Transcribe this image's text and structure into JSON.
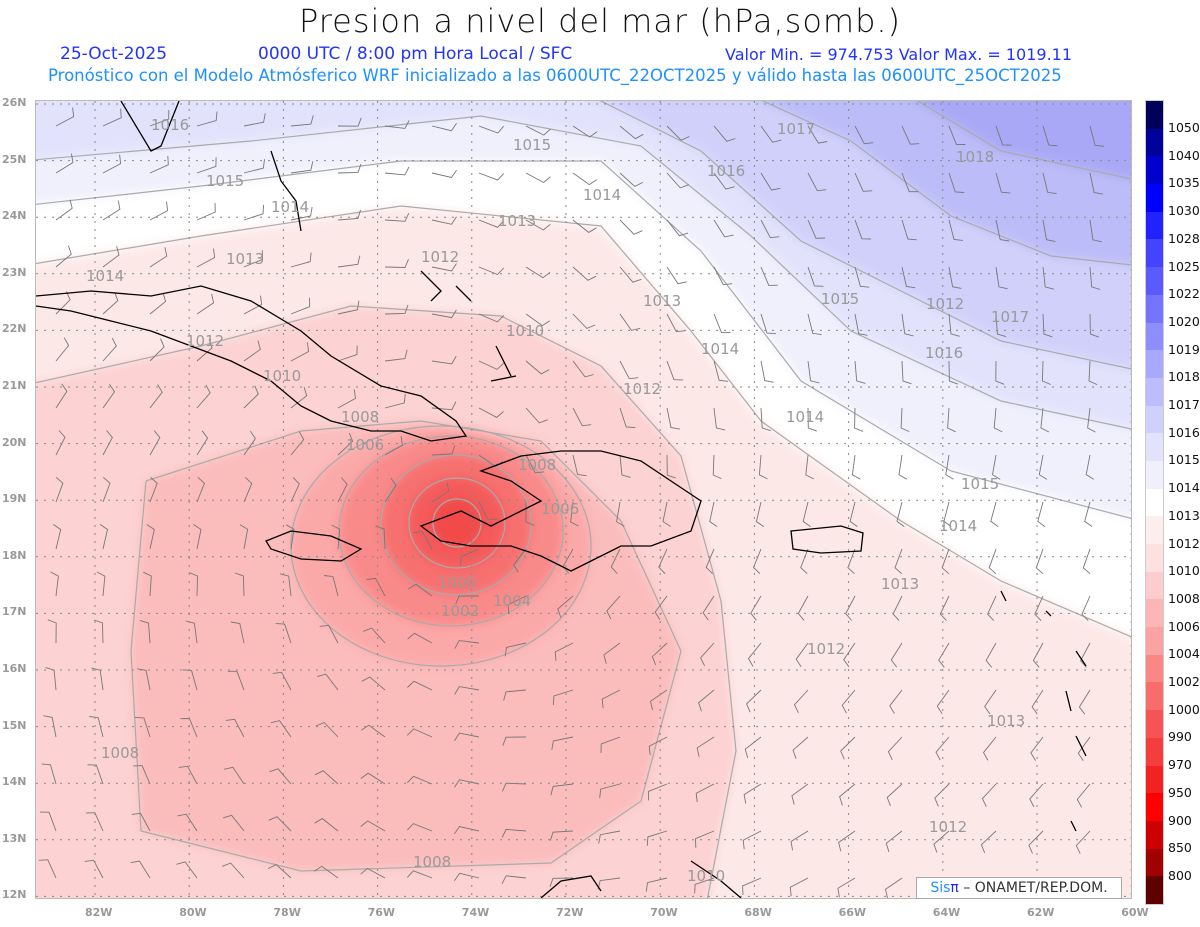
{
  "header": {
    "title": "Presion a nivel del mar (hPa,somb.)",
    "date": "25-Oct-2025",
    "time": "0000 UTC / 8:00 pm Hora Local / SFC",
    "min_max": "Valor Min. = 974.753  Valor Max. = 1019.11",
    "subtitle": "Pronóstico con el Modelo Atmósferico WRF inicializado a las 0600UTC_22OCT2025 y válido hasta las  0600UTC_25OCT2025"
  },
  "axes": {
    "lat_labels": [
      "26N",
      "25N",
      "24N",
      "23N",
      "22N",
      "21N",
      "20N",
      "19N",
      "18N",
      "17N",
      "16N",
      "15N",
      "14N",
      "13N",
      "12N"
    ],
    "lon_labels": [
      "82W",
      "80W",
      "78W",
      "76W",
      "74W",
      "72W",
      "70W",
      "68W",
      "66W",
      "64W",
      "62W",
      "60W"
    ]
  },
  "contour_labels": [
    "1016",
    "1015",
    "1015",
    "1014",
    "1014",
    "1013",
    "1013",
    "1014",
    "1012",
    "1012",
    "1010",
    "1010",
    "1008",
    "1006",
    "1008",
    "1006",
    "1004",
    "1000",
    "1002",
    "1013",
    "1012",
    "1012",
    "1015",
    "1016",
    "1017",
    "1017",
    "1018",
    "1014",
    "1015",
    "1014",
    "1013",
    "1012",
    "1013",
    "1012",
    "1008",
    "1008",
    "1010",
    "1016",
    "1014"
  ],
  "colorbar": {
    "labels": [
      "1050",
      "1040",
      "1035",
      "1030",
      "1028",
      "1025",
      "1022",
      "1020",
      "1019",
      "1018",
      "1017",
      "1016",
      "1015",
      "1014",
      "1013",
      "1012",
      "1010",
      "1008",
      "1006",
      "1004",
      "1002",
      "1000",
      "990",
      "970",
      "950",
      "900",
      "850",
      "800"
    ],
    "colors": [
      "#00005a",
      "#00009a",
      "#0000cc",
      "#0000ff",
      "#2222ff",
      "#4444ff",
      "#5a5aff",
      "#7474ff",
      "#8e8eff",
      "#a8a8ff",
      "#bcbcff",
      "#d0d0ff",
      "#e2e2fc",
      "#f0f0fd",
      "#ffffff",
      "#fdeeee",
      "#fde0e0",
      "#fdcccc",
      "#fcb6b6",
      "#fba2a2",
      "#fa8686",
      "#f86c6c",
      "#f65454",
      "#f43e3e",
      "#f22222",
      "#ff0000",
      "#cc0000",
      "#a00000",
      "#5e0000"
    ]
  },
  "credit": {
    "sis": "Sis",
    "pi": "π",
    "org": "– ONAMET/REP.DOM."
  }
}
